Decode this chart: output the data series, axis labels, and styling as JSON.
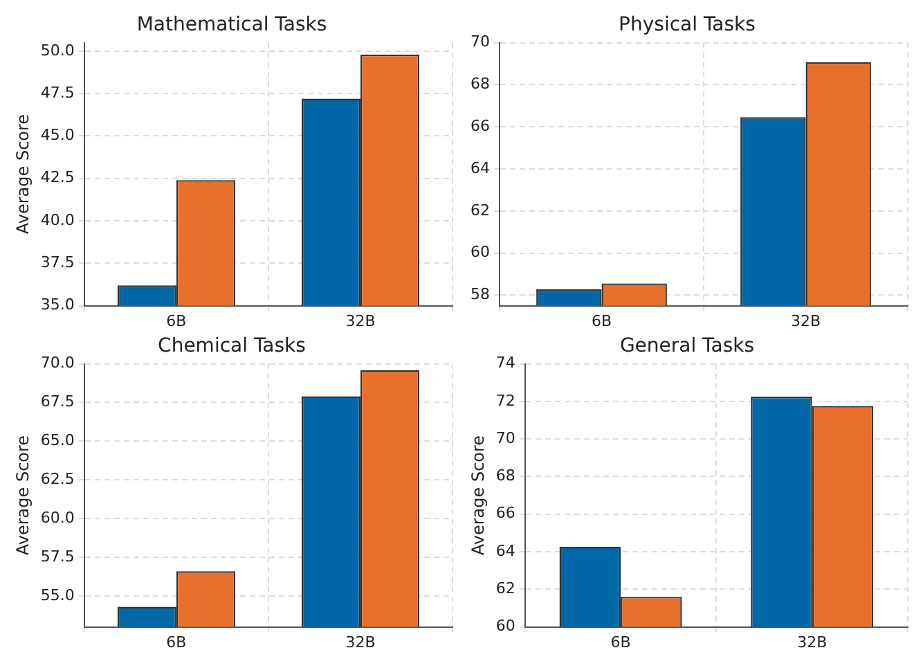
{
  "chart_data": [
    {
      "type": "bar",
      "title": "Mathematical Tasks",
      "ylabel": "Average Score",
      "categories": [
        "6B",
        "32B"
      ],
      "series": [
        {
          "color": "#0068a8",
          "values": [
            36.2,
            47.2
          ]
        },
        {
          "color": "#e8702a",
          "values": [
            42.4,
            49.8
          ]
        }
      ],
      "ylim": [
        35,
        50.5
      ],
      "yticks": [
        {
          "value": 35,
          "label": "35.0"
        },
        {
          "value": 37.5,
          "label": "37.5"
        },
        {
          "value": 40,
          "label": "40.0"
        },
        {
          "value": 42.5,
          "label": "42.5"
        },
        {
          "value": 45,
          "label": "45.0"
        },
        {
          "value": 47.5,
          "label": "47.5"
        },
        {
          "value": 50,
          "label": "50.0"
        }
      ],
      "grid": true,
      "legend": false
    },
    {
      "type": "bar",
      "title": "Physical Tasks",
      "categories": [
        "6B",
        "32B"
      ],
      "series": [
        {
          "color": "#0068a8",
          "values": [
            58.28,
            66.46
          ]
        },
        {
          "color": "#e8702a",
          "values": [
            58.56,
            69.07
          ]
        }
      ],
      "ylim": [
        57.5,
        70
      ],
      "yticks": [
        58,
        60,
        62,
        64,
        66,
        68,
        70
      ],
      "grid": true,
      "legend": false
    },
    {
      "type": "bar",
      "title": "Chemical Tasks",
      "ylabel": "Average Score",
      "categories": [
        "6B",
        "32B"
      ],
      "series": [
        {
          "color": "#0068a8",
          "values": [
            54.3,
            67.9
          ]
        },
        {
          "color": "#e8702a",
          "values": [
            56.6,
            69.6
          ]
        }
      ],
      "ylim": [
        53,
        70
      ],
      "yticks": [
        {
          "value": 55,
          "label": "55.0"
        },
        {
          "value": 57.5,
          "label": "57.5"
        },
        {
          "value": 60,
          "label": "60.0"
        },
        {
          "value": 62.5,
          "label": "62.5"
        },
        {
          "value": 65,
          "label": "65.0"
        },
        {
          "value": 67.5,
          "label": "67.5"
        },
        {
          "value": 70,
          "label": "70.0"
        }
      ],
      "grid": true,
      "legend": false
    },
    {
      "type": "bar",
      "title": "General Tasks",
      "ylabel": "Average Score",
      "categories": [
        "6B",
        "32B"
      ],
      "series": [
        {
          "color": "#0068a8",
          "values": [
            64.27,
            72.25
          ]
        },
        {
          "color": "#e8702a",
          "values": [
            61.6,
            71.76
          ]
        }
      ],
      "ylim": [
        60,
        74
      ],
      "yticks": [
        60,
        62,
        64,
        66,
        68,
        70,
        72,
        74
      ],
      "grid": true,
      "legend": false
    }
  ]
}
